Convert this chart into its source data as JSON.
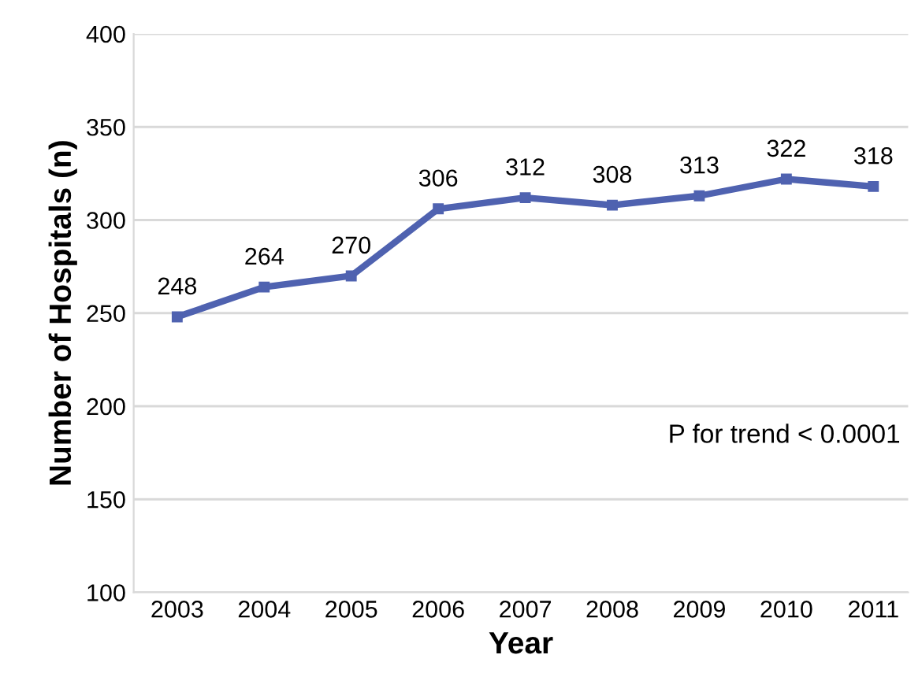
{
  "chart_data": {
    "type": "line",
    "xlabel": "Year",
    "ylabel": "Number of Hospitals (n)",
    "categories": [
      "2003",
      "2004",
      "2005",
      "2006",
      "2007",
      "2008",
      "2009",
      "2010",
      "2011"
    ],
    "series": [
      {
        "color": "#4f62b0",
        "values": [
          248,
          264,
          270,
          306,
          312,
          308,
          313,
          322,
          318
        ]
      }
    ],
    "ylim": [
      100,
      400
    ],
    "yticks": [
      100,
      150,
      200,
      250,
      300,
      350,
      400
    ],
    "grid": "y",
    "marker": "square",
    "line_style": "solid",
    "data_labels": true,
    "annotations": [
      "P for trend < 0.0001"
    ]
  }
}
